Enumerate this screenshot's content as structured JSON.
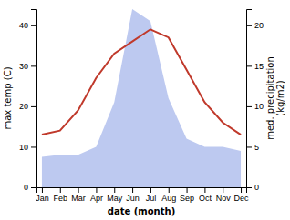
{
  "chart_data": {
    "type": "line",
    "categories": [
      "Jan",
      "Feb",
      "Mar",
      "Apr",
      "May",
      "Jun",
      "Jul",
      "Aug",
      "Sep",
      "Oct",
      "Nov",
      "Dec"
    ],
    "series": [
      {
        "type": "area",
        "axis": "y2",
        "color": "#bdc9f0",
        "values": [
          3.75,
          4,
          4,
          5,
          10.5,
          22,
          20.5,
          11,
          6,
          5,
          5,
          4.5
        ]
      },
      {
        "type": "line",
        "color": "#c0392b",
        "values": [
          13,
          14,
          19,
          27,
          33,
          36,
          39,
          37,
          29,
          21,
          16,
          13
        ]
      }
    ],
    "x_label": "date (month)",
    "y_label": "max temp (C)",
    "y2_label": "med. precipitation\n(kg/m2)",
    "ylim": [
      0,
      44
    ],
    "yticks": [
      0,
      10,
      20,
      30,
      40
    ],
    "y2lim": [
      0,
      22
    ],
    "y2ticks": [
      0,
      5,
      10,
      15,
      20
    ],
    "grid": false
  }
}
